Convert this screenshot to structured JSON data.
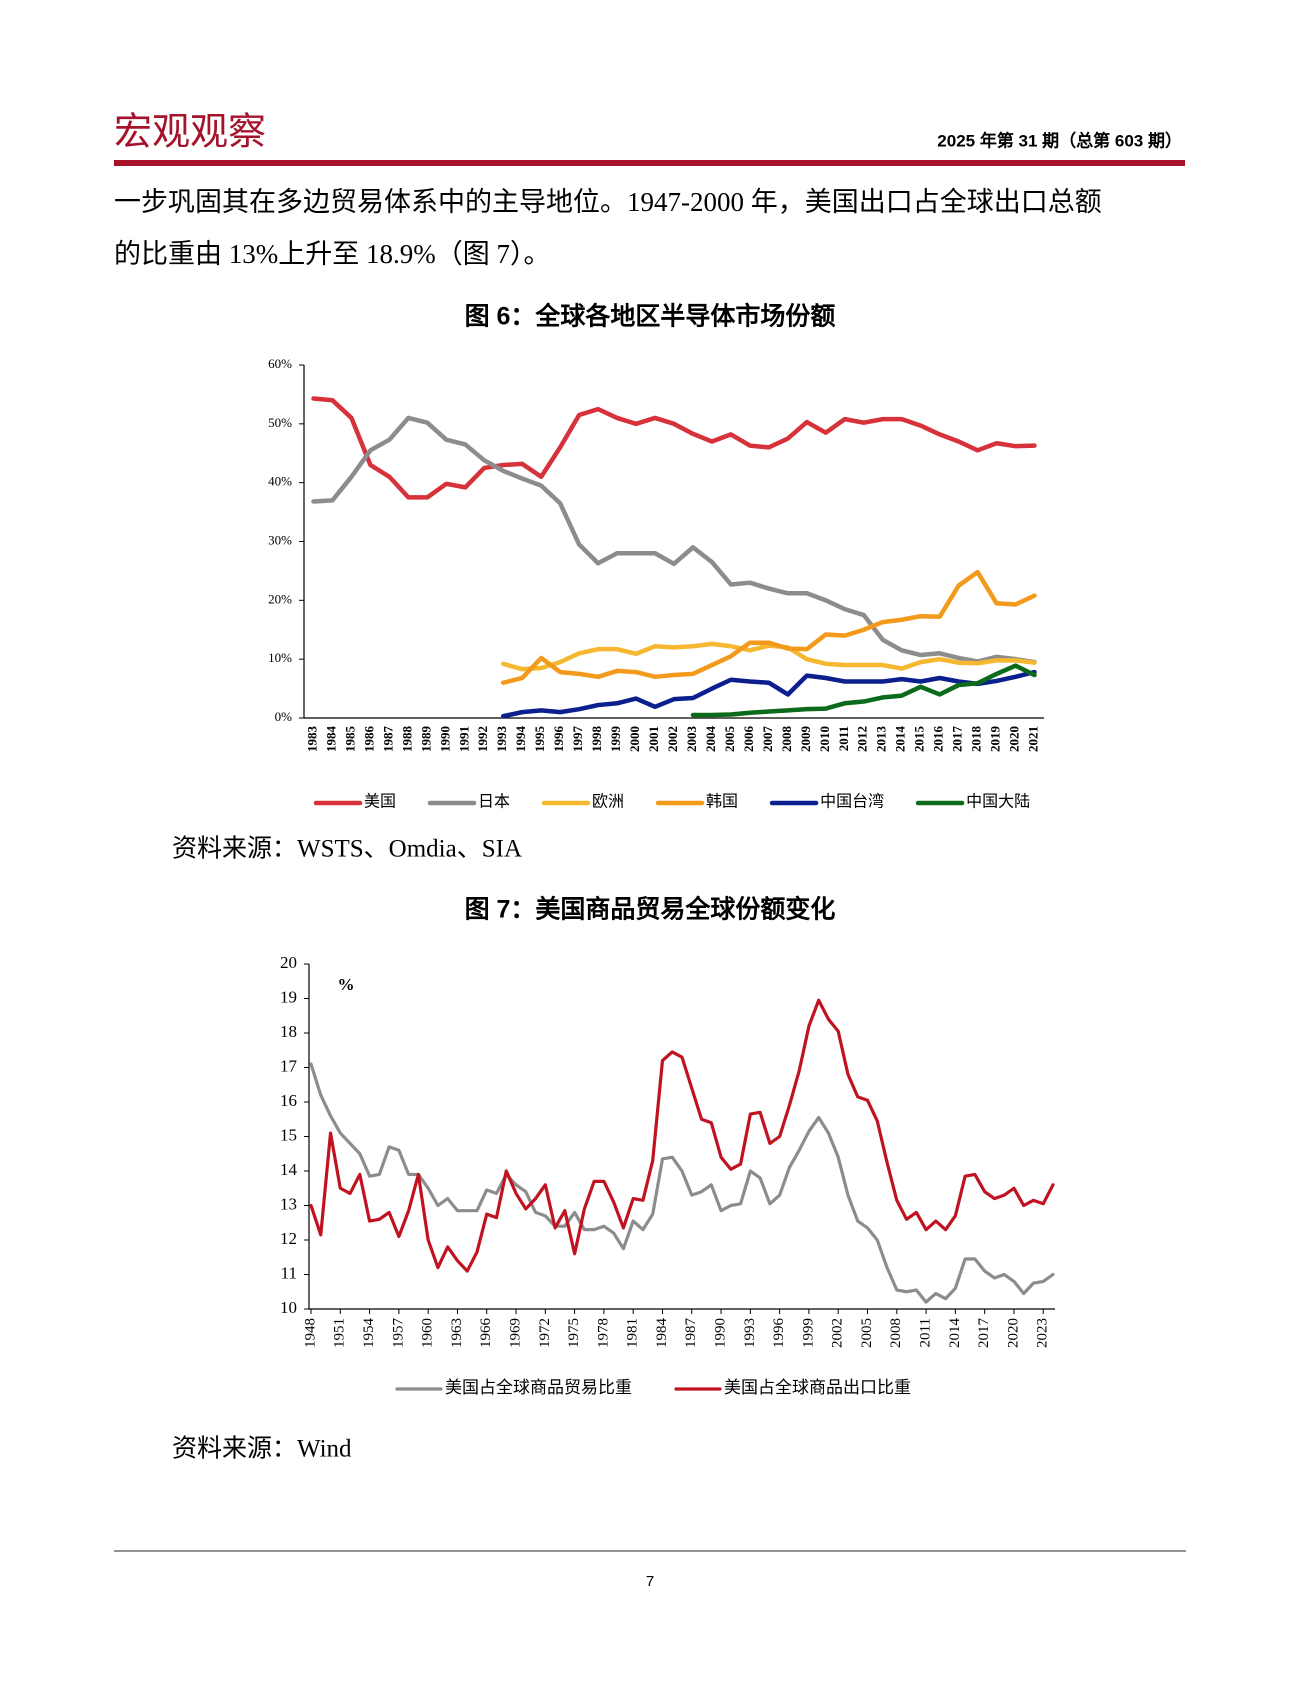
{
  "header": {
    "title": "宏观观察",
    "issue": "2025 年第 31 期（总第 603 期）"
  },
  "body": {
    "paragraph": [
      "一步巩固其在多边贸易体系中的主导地位。1947-2000 年，美国出口占全球出口总额",
      "的比重由 13%上升至 18.9%（图 7）。"
    ]
  },
  "sources": [
    "资料来源：WSTS、Omdia、SIA",
    "资料来源：Wind"
  ],
  "footer": {
    "page_number": 7
  },
  "chart_data": [
    {
      "type": "line",
      "title": "图 6：全球各地区半导体市场份额",
      "categories": [
        "1983",
        "1984",
        "1985",
        "1986",
        "1987",
        "1988",
        "1989",
        "1990",
        "1991",
        "1992",
        "1993",
        "1994",
        "1995",
        "1996",
        "1997",
        "1998",
        "1999",
        "2000",
        "2001",
        "2002",
        "2003",
        "2004",
        "2005",
        "2006",
        "2007",
        "2008",
        "2009",
        "2010",
        "2011",
        "2012",
        "2013",
        "2014",
        "2015",
        "2016",
        "2017",
        "2018",
        "2019",
        "2020",
        "2021"
      ],
      "ylim": [
        0,
        60
      ],
      "yticks": [
        {
          "value": 0,
          "label": "0%"
        },
        {
          "value": 10,
          "label": "10%"
        },
        {
          "value": 20,
          "label": "20%"
        },
        {
          "value": 30,
          "label": "30%"
        },
        {
          "value": 40,
          "label": "40%"
        },
        {
          "value": 50,
          "label": "50%"
        },
        {
          "value": 60,
          "label": "60%"
        }
      ],
      "grid": false,
      "series": [
        {
          "name": "美国",
          "color": "#d7313a",
          "values": [
            54.3,
            54,
            51,
            43,
            41,
            37.5,
            37.5,
            39.8,
            39.2,
            42.5,
            43,
            43.2,
            41,
            46,
            51.5,
            52.5,
            51,
            50,
            51,
            50,
            48.3,
            47,
            48.2,
            46.3,
            46,
            47.5,
            50.3,
            48.5,
            50.8,
            50.2,
            50.8,
            50.8,
            49.7,
            48.2,
            47,
            45.5,
            46.7,
            46.2,
            46.3
          ]
        },
        {
          "name": "日本",
          "color": "#8c8c8c",
          "values": [
            36.8,
            37,
            41,
            45.5,
            47.3,
            51,
            50.2,
            47.3,
            46.5,
            43.8,
            42,
            40.7,
            39.5,
            36.5,
            29.5,
            26.3,
            28,
            28,
            28,
            26.2,
            29,
            26.5,
            22.7,
            23,
            22,
            21.2,
            21.2,
            20,
            18.5,
            17.5,
            13.3,
            11.5,
            10.7,
            11,
            10.2,
            9.6,
            10.4,
            10,
            9.5
          ]
        },
        {
          "name": "欧洲",
          "color": "#f5b830",
          "values": [
            null,
            null,
            null,
            null,
            null,
            null,
            null,
            null,
            null,
            null,
            9.2,
            8.3,
            8.5,
            9.5,
            11,
            11.7,
            11.7,
            10.9,
            12.2,
            12,
            12.2,
            12.6,
            12.2,
            11.5,
            12.3,
            12,
            10,
            9.2,
            9,
            9,
            9,
            8.4,
            9.5,
            10,
            9.4,
            9.3,
            9.8,
            9.8,
            9.4
          ]
        },
        {
          "name": "韩国",
          "color": "#f39a1c",
          "values": [
            null,
            null,
            null,
            null,
            null,
            null,
            null,
            null,
            null,
            null,
            6,
            6.8,
            10.2,
            7.8,
            7.5,
            7,
            8,
            7.8,
            7,
            7.3,
            7.5,
            9,
            10.5,
            12.8,
            12.8,
            11.8,
            11.7,
            14.2,
            14,
            15,
            16.3,
            16.7,
            17.3,
            17.2,
            22.5,
            24.8,
            19.5,
            19.3,
            20.8
          ]
        },
        {
          "name": "中国台湾",
          "color": "#0b1f8f",
          "values": [
            null,
            null,
            null,
            null,
            null,
            null,
            null,
            null,
            null,
            null,
            0.3,
            1,
            1.3,
            1,
            1.5,
            2.2,
            2.5,
            3.3,
            1.9,
            3.2,
            3.4,
            5,
            6.5,
            6.2,
            6,
            4,
            7.2,
            6.8,
            6.2,
            6.2,
            6.2,
            6.6,
            6.2,
            6.8,
            6.2,
            5.8,
            6.3,
            7,
            7.8
          ]
        },
        {
          "name": "中国大陆",
          "color": "#0b6b1a",
          "values": [
            null,
            null,
            null,
            null,
            null,
            null,
            null,
            null,
            null,
            null,
            null,
            null,
            null,
            null,
            null,
            null,
            null,
            null,
            null,
            null,
            0.5,
            0.5,
            0.6,
            0.9,
            1.1,
            1.3,
            1.5,
            1.6,
            2.5,
            2.8,
            3.5,
            3.8,
            5.3,
            4,
            5.6,
            5.9,
            7.5,
            8.9,
            7.3
          ]
        }
      ]
    },
    {
      "type": "line",
      "title": "图 7：美国商品贸易全球份额变化",
      "unit_label": "%",
      "x": [
        1948,
        1949,
        1950,
        1951,
        1952,
        1953,
        1954,
        1955,
        1956,
        1957,
        1958,
        1959,
        1960,
        1961,
        1962,
        1963,
        1964,
        1965,
        1966,
        1967,
        1968,
        1969,
        1970,
        1971,
        1972,
        1973,
        1974,
        1975,
        1976,
        1977,
        1978,
        1979,
        1980,
        1981,
        1982,
        1983,
        1984,
        1985,
        1986,
        1987,
        1988,
        1989,
        1990,
        1991,
        1992,
        1993,
        1994,
        1995,
        1996,
        1997,
        1998,
        1999,
        2000,
        2001,
        2002,
        2003,
        2004,
        2005,
        2006,
        2007,
        2008,
        2009,
        2010,
        2011,
        2012,
        2013,
        2014,
        2015,
        2016,
        2017,
        2018,
        2019,
        2020,
        2021,
        2022,
        2023,
        2024
      ],
      "xlim": [
        1948,
        2024
      ],
      "xticks": [
        1948,
        1951,
        1954,
        1957,
        1960,
        1963,
        1966,
        1969,
        1972,
        1975,
        1978,
        1981,
        1984,
        1987,
        1990,
        1993,
        1996,
        1999,
        2002,
        2005,
        2008,
        2011,
        2014,
        2017,
        2020,
        2023
      ],
      "ylim": [
        10,
        20
      ],
      "yticks": [
        10,
        11,
        12,
        13,
        14,
        15,
        16,
        17,
        18,
        19,
        20
      ],
      "grid": false,
      "series": [
        {
          "name": "美国占全球商品贸易比重",
          "color": "#8c8c8c",
          "values": [
            17.1,
            16.2,
            15.6,
            15.1,
            14.8,
            14.5,
            13.85,
            13.9,
            14.7,
            14.6,
            13.9,
            13.9,
            13.5,
            13.0,
            13.2,
            12.85,
            12.85,
            12.85,
            13.45,
            13.35,
            13.9,
            13.6,
            13.4,
            12.8,
            12.7,
            12.4,
            12.4,
            12.8,
            12.3,
            12.3,
            12.4,
            12.2,
            11.75,
            12.55,
            12.3,
            12.75,
            14.35,
            14.4,
            14.0,
            13.3,
            13.4,
            13.6,
            12.85,
            13.0,
            13.05,
            14.0,
            13.8,
            13.05,
            13.3,
            14.1,
            14.6,
            15.15,
            15.55,
            15.1,
            14.4,
            13.3,
            12.55,
            12.35,
            12.0,
            11.2,
            10.55,
            10.5,
            10.55,
            10.2,
            10.45,
            10.3,
            10.6,
            11.45,
            11.45,
            11.1,
            10.9,
            11.0,
            10.8,
            10.45,
            10.75,
            10.8,
            11.0
          ]
        },
        {
          "name": "美国占全球商品出口比重",
          "color": "#c0121f",
          "values": [
            13.0,
            12.15,
            15.1,
            13.5,
            13.35,
            13.9,
            12.55,
            12.6,
            12.8,
            12.1,
            12.85,
            13.9,
            12.0,
            11.2,
            11.8,
            11.4,
            11.1,
            11.65,
            12.75,
            12.65,
            14.0,
            13.35,
            12.9,
            13.2,
            13.6,
            12.35,
            12.85,
            11.6,
            12.9,
            13.7,
            13.7,
            13.1,
            12.35,
            13.2,
            13.15,
            14.3,
            17.2,
            17.45,
            17.3,
            16.4,
            15.5,
            15.4,
            14.4,
            14.05,
            14.2,
            15.65,
            15.7,
            14.8,
            15.0,
            15.9,
            16.9,
            18.2,
            18.95,
            18.4,
            18.05,
            16.8,
            16.15,
            16.05,
            15.45,
            14.25,
            13.15,
            12.6,
            12.8,
            12.3,
            12.55,
            12.3,
            12.7,
            13.85,
            13.9,
            13.4,
            13.2,
            13.3,
            13.5,
            13.0,
            13.15,
            13.05,
            13.6
          ]
        }
      ]
    }
  ]
}
